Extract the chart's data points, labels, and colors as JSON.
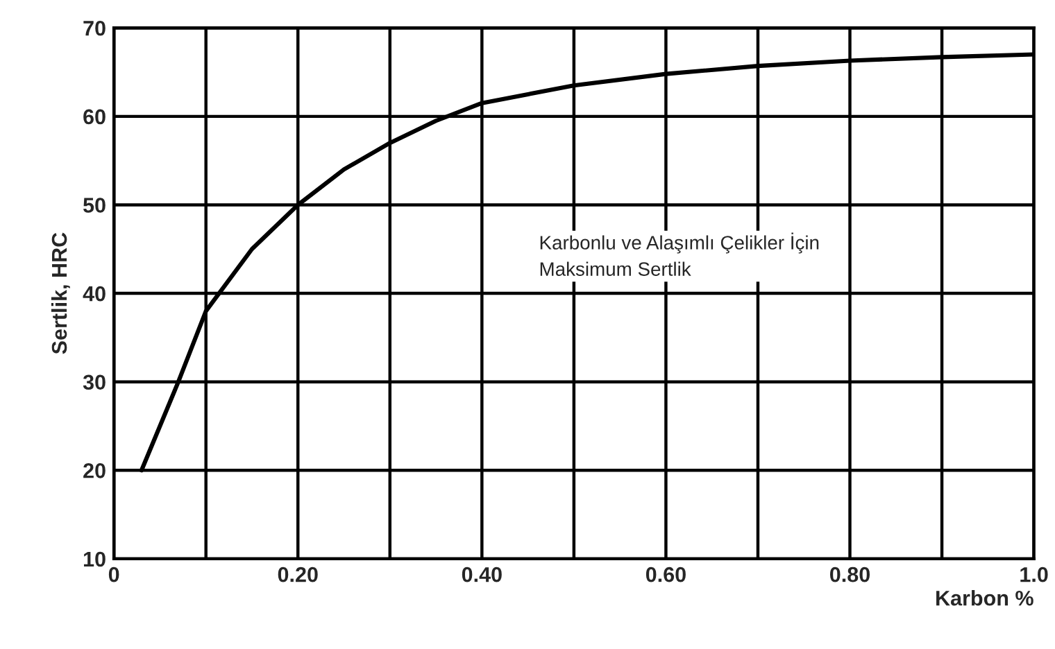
{
  "chart_data": {
    "type": "line",
    "xlabel": "Karbon %",
    "ylabel": "Sertlik, HRC",
    "annotations": [
      "Karbonlu ve Alaşımlı Çelikler İçin\nMaksimum Sertlik"
    ],
    "x": [
      0.03,
      0.05,
      0.07,
      0.1,
      0.15,
      0.2,
      0.25,
      0.3,
      0.35,
      0.4,
      0.5,
      0.6,
      0.7,
      0.8,
      0.9,
      1.0
    ],
    "series": [
      {
        "color": "#000000",
        "values": [
          20,
          25,
          30,
          38,
          45,
          50,
          54,
          57,
          59.5,
          61.5,
          63.5,
          64.8,
          65.7,
          66.3,
          66.7,
          67
        ]
      }
    ],
    "xlim": [
      0,
      1.0
    ],
    "ylim": [
      10,
      70
    ],
    "xticks": [
      {
        "value": 0,
        "label": "0"
      },
      {
        "value": 0.1,
        "label": null
      },
      {
        "value": 0.2,
        "label": "0.20"
      },
      {
        "value": 0.3,
        "label": null
      },
      {
        "value": 0.4,
        "label": "0.40"
      },
      {
        "value": 0.5,
        "label": null
      },
      {
        "value": 0.6,
        "label": "0.60"
      },
      {
        "value": 0.7,
        "label": null
      },
      {
        "value": 0.8,
        "label": "0.80"
      },
      {
        "value": 0.9,
        "label": null
      },
      {
        "value": 1.0,
        "label": "1.0"
      }
    ],
    "yticks": [
      10,
      20,
      30,
      40,
      50,
      60,
      70
    ],
    "grid": true,
    "marker": "none",
    "line_style": "solid"
  }
}
